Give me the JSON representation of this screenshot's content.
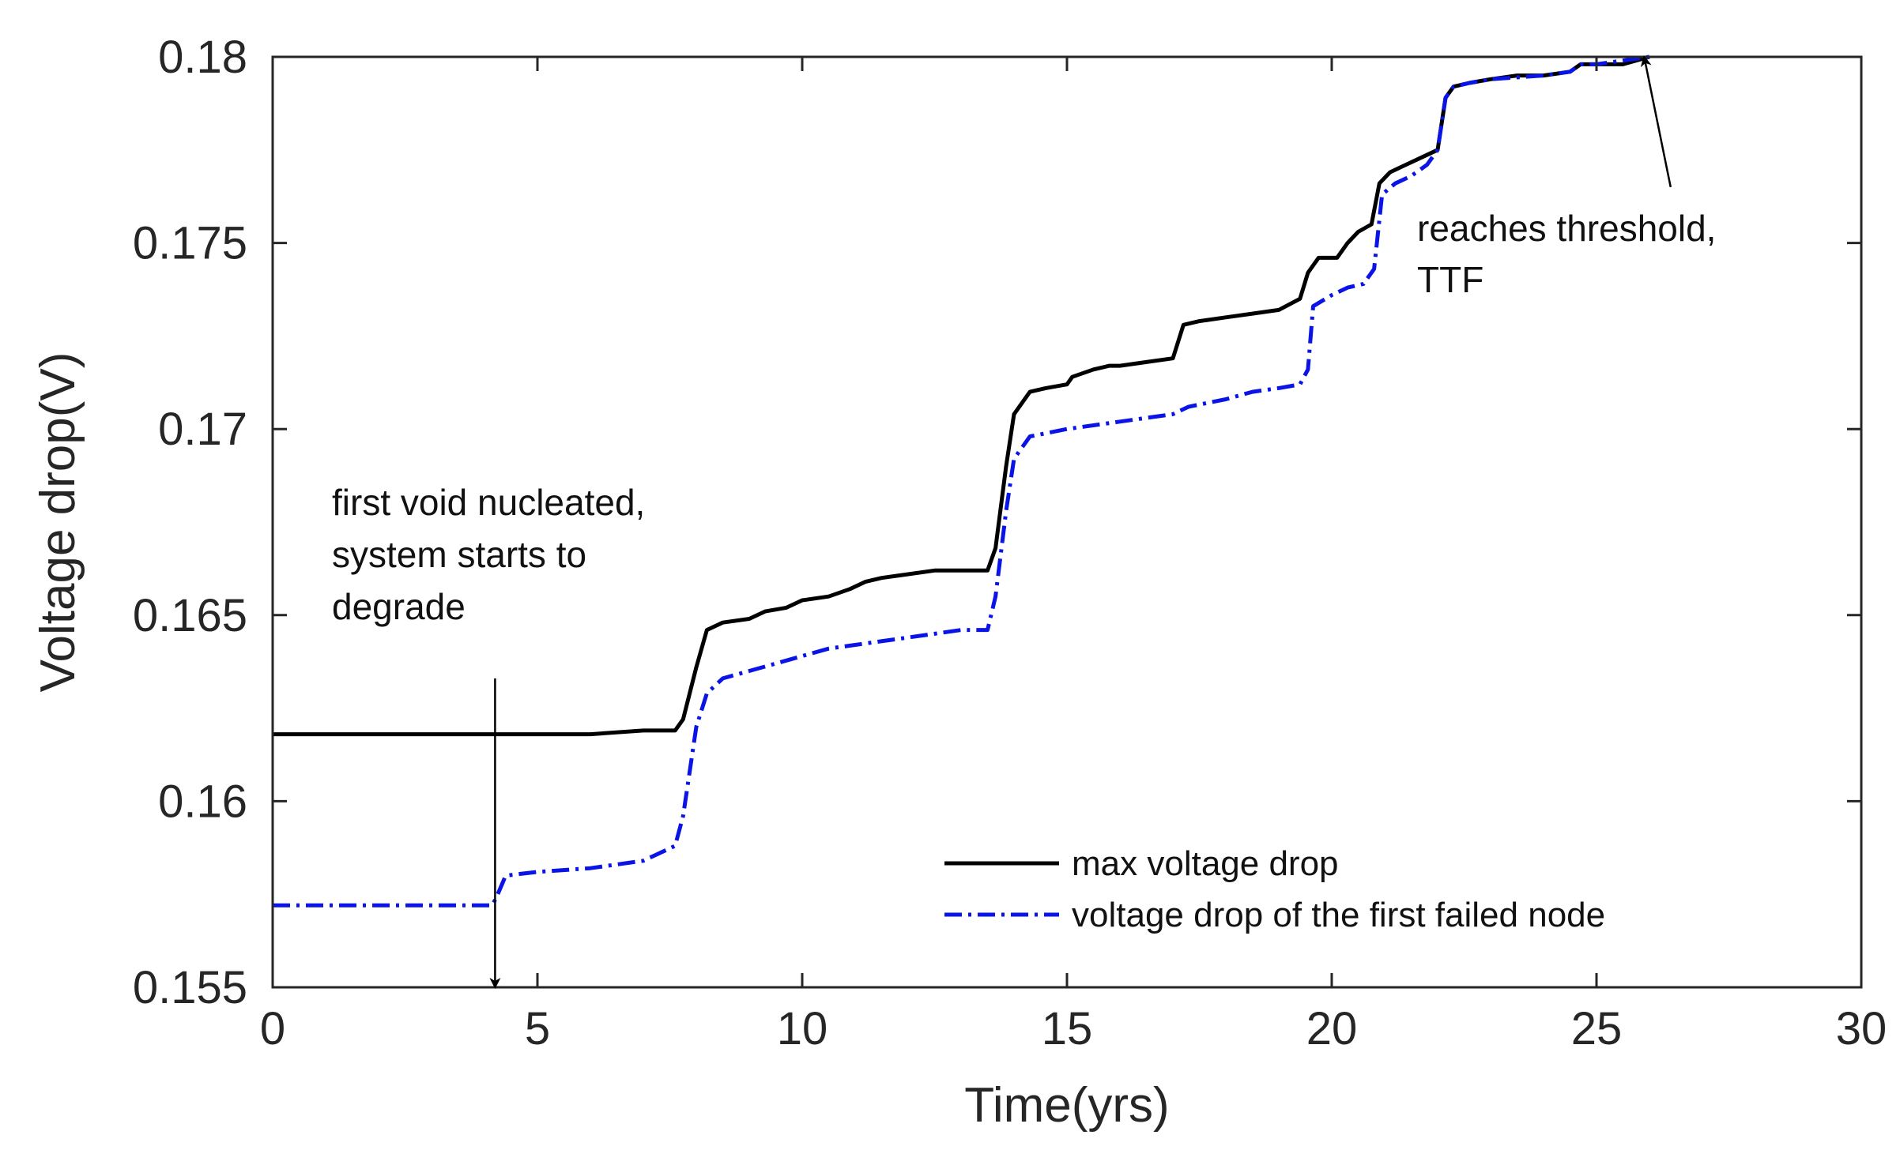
{
  "chart_data": {
    "type": "line",
    "title": "",
    "xlabel": "Time(yrs)",
    "ylabel": "Voltage drop(V)",
    "xlim": [
      0,
      30
    ],
    "ylim": [
      0.155,
      0.18
    ],
    "xticks": [
      0,
      5,
      10,
      15,
      20,
      25,
      30
    ],
    "xtick_labels": [
      "0",
      "5",
      "10",
      "15",
      "20",
      "25",
      "30"
    ],
    "yticks": [
      0.155,
      0.16,
      0.165,
      0.17,
      0.175,
      0.18
    ],
    "ytick_labels": [
      "0.155",
      "0.16",
      "0.165",
      "0.17",
      "0.175",
      "0.18"
    ],
    "grid": false,
    "legend_position": "bottom-right",
    "series": [
      {
        "name": "max voltage drop",
        "color": "#000000",
        "style": "solid",
        "x": [
          0,
          4.2,
          5.0,
          6.0,
          7.0,
          7.6,
          7.75,
          8.0,
          8.2,
          8.5,
          9.0,
          9.3,
          9.7,
          10.0,
          10.5,
          10.9,
          11.2,
          11.5,
          12.0,
          12.5,
          13.0,
          13.5,
          13.65,
          13.85,
          14.0,
          14.3,
          14.6,
          15.0,
          15.1,
          15.5,
          15.8,
          16.0,
          16.5,
          17.0,
          17.2,
          17.5,
          18.0,
          18.5,
          19.0,
          19.4,
          19.55,
          19.75,
          20.1,
          20.3,
          20.5,
          20.75,
          20.9,
          21.1,
          21.4,
          21.7,
          22.0,
          22.15,
          22.3,
          22.6,
          23.0,
          23.5,
          24.0,
          24.5,
          24.7,
          25.0,
          25.5,
          26.0
        ],
        "y": [
          0.1618,
          0.1618,
          0.1618,
          0.1618,
          0.1619,
          0.1619,
          0.1622,
          0.1636,
          0.1646,
          0.1648,
          0.1649,
          0.1651,
          0.1652,
          0.1654,
          0.1655,
          0.1657,
          0.1659,
          0.166,
          0.1661,
          0.1662,
          0.1662,
          0.1662,
          0.1668,
          0.169,
          0.1704,
          0.171,
          0.1711,
          0.1712,
          0.1714,
          0.1716,
          0.1717,
          0.1717,
          0.1718,
          0.1719,
          0.1728,
          0.1729,
          0.173,
          0.1731,
          0.1732,
          0.1735,
          0.1742,
          0.1746,
          0.1746,
          0.175,
          0.1753,
          0.1755,
          0.1766,
          0.1769,
          0.1771,
          0.1773,
          0.1775,
          0.1789,
          0.1792,
          0.1793,
          0.1794,
          0.1795,
          0.1795,
          0.1796,
          0.1798,
          0.1798,
          0.1798,
          0.18
        ]
      },
      {
        "name": "voltage drop of the first failed node",
        "color": "#0a14e6",
        "style": "dashdot",
        "x": [
          0,
          4.15,
          4.25,
          4.4,
          5.0,
          6.0,
          7.0,
          7.6,
          7.75,
          8.0,
          8.2,
          8.5,
          9.0,
          9.5,
          10.0,
          10.5,
          11.0,
          12.0,
          12.5,
          13.0,
          13.5,
          13.65,
          13.85,
          14.0,
          14.3,
          15.0,
          16.0,
          17.0,
          17.3,
          18.0,
          18.5,
          19.0,
          19.4,
          19.55,
          19.65,
          20.0,
          20.3,
          20.6,
          20.8,
          20.95,
          21.2,
          21.5,
          21.8,
          22.0,
          22.15,
          22.3,
          22.6,
          23.0,
          24.0,
          24.5,
          24.7,
          25.0,
          26.0
        ],
        "y": [
          0.1572,
          0.1572,
          0.1575,
          0.158,
          0.1581,
          0.1582,
          0.1584,
          0.1588,
          0.1596,
          0.162,
          0.1629,
          0.1633,
          0.1635,
          0.1637,
          0.1639,
          0.1641,
          0.1642,
          0.1644,
          0.1645,
          0.1646,
          0.1646,
          0.1655,
          0.1678,
          0.1692,
          0.1698,
          0.17,
          0.1702,
          0.1704,
          0.1706,
          0.1708,
          0.171,
          0.1711,
          0.1712,
          0.1716,
          0.1733,
          0.1736,
          0.1738,
          0.1739,
          0.1743,
          0.1763,
          0.1766,
          0.1768,
          0.1771,
          0.1775,
          0.1789,
          0.1792,
          0.1793,
          0.1794,
          0.1795,
          0.1796,
          0.1798,
          0.1798,
          0.18
        ]
      }
    ],
    "annotations": [
      {
        "lines": [
          "first void nucleated,",
          "system starts to",
          "degrade"
        ],
        "arrow_from": [
          4.2,
          0.1633
        ],
        "arrow_to": [
          4.2,
          0.155
        ]
      },
      {
        "lines": [
          "reaches threshold,",
          "TTF"
        ],
        "arrow_from": [
          26.4,
          0.1765
        ],
        "arrow_to": [
          25.9,
          0.18
        ]
      }
    ]
  }
}
